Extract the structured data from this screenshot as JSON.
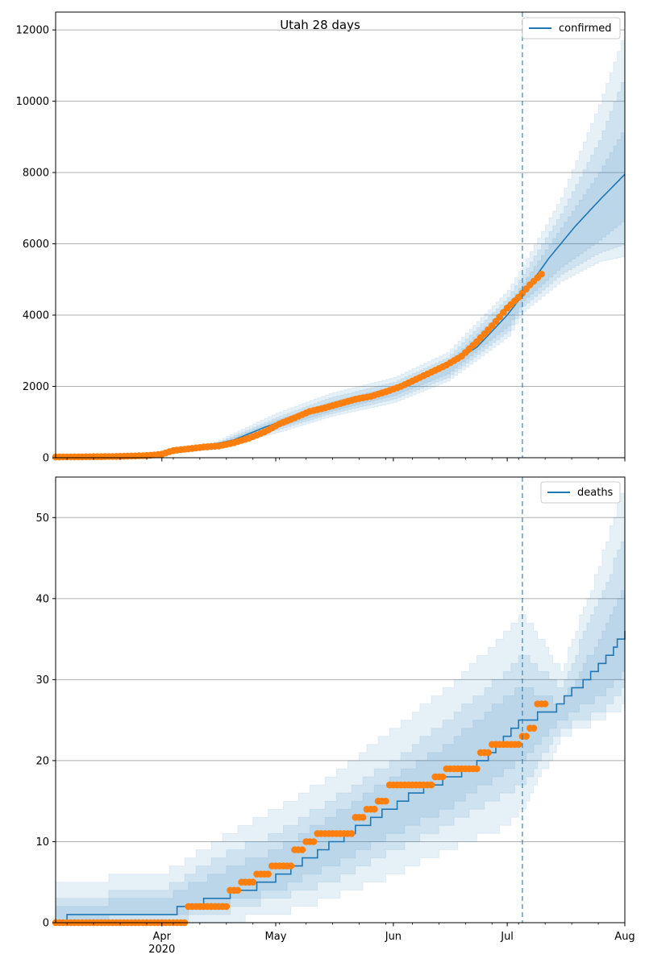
{
  "figure": {
    "title": "Utah 28 days"
  },
  "colors": {
    "model_line": "#1f77b4",
    "observed_points": "#ff7f0e",
    "band_fill": "#1f77b4",
    "forecast_marker": "#1f77b4",
    "grid": "#b0b0b0"
  },
  "x_axis": {
    "ticks": [
      {
        "date": "2020-04-01",
        "label": "Apr",
        "sublabel": "2020"
      },
      {
        "date": "2020-05-01",
        "label": "May",
        "sublabel": ""
      },
      {
        "date": "2020-06-01",
        "label": "Jun",
        "sublabel": ""
      },
      {
        "date": "2020-07-01",
        "label": "Jul",
        "sublabel": ""
      },
      {
        "date": "2020-08-01",
        "label": "Aug",
        "sublabel": ""
      }
    ],
    "range": [
      "2020-03-04",
      "2020-08-01"
    ]
  },
  "chart_data": [
    {
      "type": "line",
      "title": "Utah 28 days",
      "legend": {
        "label": "confirmed",
        "placement": "top-right"
      },
      "grid": "y",
      "ylim": [
        0,
        12500
      ],
      "yticks": [
        0,
        2000,
        4000,
        6000,
        8000,
        10000,
        12000
      ],
      "xlim": [
        "2020-03-04",
        "2020-08-01"
      ],
      "forecast_start": "2020-07-05",
      "model": {
        "dates": [
          "2020-03-04",
          "2020-03-12",
          "2020-03-20",
          "2020-03-28",
          "2020-04-04",
          "2020-04-12",
          "2020-04-20",
          "2020-04-28",
          "2020-05-06",
          "2020-05-14",
          "2020-05-22",
          "2020-05-30",
          "2020-06-07",
          "2020-06-15",
          "2020-06-23",
          "2020-07-01",
          "2020-07-05",
          "2020-07-12",
          "2020-07-19",
          "2020-07-26",
          "2020-08-01"
        ],
        "values": [
          0,
          10,
          30,
          60,
          200,
          320,
          500,
          850,
          1150,
          1400,
          1650,
          1900,
          2200,
          2550,
          3100,
          4000,
          4550,
          5600,
          6500,
          7300,
          7950
        ]
      },
      "bands": [
        {
          "dates": [
            "2020-03-04",
            "2020-04-01",
            "2020-04-15",
            "2020-05-01",
            "2020-05-15",
            "2020-06-01",
            "2020-06-15",
            "2020-07-01",
            "2020-07-05",
            "2020-07-15",
            "2020-07-25",
            "2020-08-01"
          ],
          "lower": [
            0,
            80,
            250,
            700,
            1150,
            1550,
            2150,
            3400,
            4100,
            4950,
            5500,
            5650
          ],
          "upper": [
            0,
            170,
            450,
            1250,
            1800,
            2250,
            2950,
            4700,
            5400,
            7300,
            9900,
            12000
          ]
        },
        {
          "dates": [
            "2020-03-04",
            "2020-04-01",
            "2020-04-15",
            "2020-05-01",
            "2020-05-15",
            "2020-06-01",
            "2020-06-15",
            "2020-07-01",
            "2020-07-05",
            "2020-07-15",
            "2020-07-25",
            "2020-08-01"
          ],
          "lower": [
            0,
            95,
            290,
            780,
            1230,
            1650,
            2250,
            3550,
            4250,
            5150,
            5750,
            6000
          ],
          "upper": [
            0,
            150,
            400,
            1130,
            1680,
            2120,
            2800,
            4500,
            5150,
            6850,
            8900,
            10800
          ]
        },
        {
          "dates": [
            "2020-03-04",
            "2020-04-01",
            "2020-04-15",
            "2020-05-01",
            "2020-05-15",
            "2020-06-01",
            "2020-06-15",
            "2020-07-01",
            "2020-07-05",
            "2020-07-15",
            "2020-07-25",
            "2020-08-01"
          ],
          "lower": [
            0,
            105,
            320,
            850,
            1300,
            1750,
            2350,
            3700,
            4400,
            5350,
            6100,
            6700
          ],
          "upper": [
            0,
            135,
            370,
            1050,
            1560,
            2000,
            2650,
            4300,
            4900,
            6450,
            8000,
            9300
          ]
        }
      ],
      "observed": {
        "dates": [
          "2020-03-04",
          "2020-03-10",
          "2020-03-16",
          "2020-03-22",
          "2020-03-28",
          "2020-04-01",
          "2020-04-04",
          "2020-04-08",
          "2020-04-12",
          "2020-04-16",
          "2020-04-20",
          "2020-04-24",
          "2020-04-28",
          "2020-05-02",
          "2020-05-06",
          "2020-05-10",
          "2020-05-14",
          "2020-05-18",
          "2020-05-22",
          "2020-05-26",
          "2020-05-30",
          "2020-06-03",
          "2020-06-07",
          "2020-06-11",
          "2020-06-15",
          "2020-06-19",
          "2020-06-23",
          "2020-06-27",
          "2020-07-01",
          "2020-07-04",
          "2020-07-07",
          "2020-07-10"
        ],
        "values": [
          20,
          25,
          30,
          40,
          60,
          100,
          200,
          250,
          300,
          330,
          420,
          550,
          720,
          950,
          1120,
          1300,
          1400,
          1520,
          1640,
          1720,
          1850,
          2000,
          2200,
          2400,
          2600,
          2850,
          3250,
          3700,
          4200,
          4500,
          4850,
          5150
        ]
      }
    },
    {
      "type": "line",
      "legend": {
        "label": "deaths",
        "placement": "top-right"
      },
      "grid": "y",
      "ylim": [
        0,
        55
      ],
      "yticks": [
        0,
        10,
        20,
        30,
        40,
        50
      ],
      "xlim": [
        "2020-03-04",
        "2020-08-01"
      ],
      "forecast_start": "2020-07-05",
      "model": {
        "dates": [
          "2020-03-04",
          "2020-03-10",
          "2020-04-01",
          "2020-04-08",
          "2020-04-15",
          "2020-04-22",
          "2020-04-29",
          "2020-05-06",
          "2020-05-13",
          "2020-05-20",
          "2020-05-27",
          "2020-06-03",
          "2020-06-10",
          "2020-06-17",
          "2020-06-24",
          "2020-07-01",
          "2020-07-05",
          "2020-07-12",
          "2020-07-19",
          "2020-07-26",
          "2020-08-01"
        ],
        "values": [
          0,
          1,
          1,
          2,
          3,
          4,
          5,
          7,
          9,
          11,
          13,
          15,
          17,
          18,
          20,
          23,
          25,
          26,
          29,
          32,
          36
        ]
      },
      "bands": [
        {
          "dates": [
            "2020-03-04",
            "2020-04-01",
            "2020-04-15",
            "2020-05-01",
            "2020-05-15",
            "2020-06-01",
            "2020-06-15",
            "2020-07-01",
            "2020-07-05",
            "2020-07-15",
            "2020-07-25",
            "2020-08-01"
          ],
          "lower": [
            0,
            0,
            0,
            1,
            3,
            6,
            9,
            12,
            14,
            23,
            25,
            27
          ],
          "upper": [
            5,
            6,
            10,
            14,
            18,
            24,
            29,
            36,
            38,
            31,
            44,
            55
          ]
        },
        {
          "dates": [
            "2020-03-04",
            "2020-04-01",
            "2020-04-15",
            "2020-05-01",
            "2020-05-15",
            "2020-06-01",
            "2020-06-15",
            "2020-07-01",
            "2020-07-05",
            "2020-07-15",
            "2020-07-25",
            "2020-08-01"
          ],
          "lower": [
            0,
            0,
            1,
            3,
            5,
            9,
            12,
            16,
            17,
            24,
            26,
            29
          ],
          "upper": [
            3,
            4,
            8,
            11,
            15,
            20,
            25,
            31,
            33,
            29,
            40,
            48
          ]
        },
        {
          "dates": [
            "2020-03-04",
            "2020-04-01",
            "2020-04-15",
            "2020-05-01",
            "2020-05-15",
            "2020-06-01",
            "2020-06-15",
            "2020-07-01",
            "2020-07-05",
            "2020-07-15",
            "2020-07-25",
            "2020-08-01"
          ],
          "lower": [
            0,
            1,
            2,
            4,
            7,
            11,
            14,
            19,
            20,
            25,
            28,
            31
          ],
          "upper": [
            2,
            3,
            6,
            9,
            13,
            18,
            22,
            28,
            29,
            27,
            35,
            42
          ]
        }
      ],
      "observed": {
        "dates": [
          "2020-03-04",
          "2020-03-15",
          "2020-03-25",
          "2020-04-05",
          "2020-04-08",
          "2020-04-12",
          "2020-04-16",
          "2020-04-19",
          "2020-04-22",
          "2020-04-26",
          "2020-04-30",
          "2020-05-03",
          "2020-05-06",
          "2020-05-09",
          "2020-05-12",
          "2020-05-16",
          "2020-05-19",
          "2020-05-22",
          "2020-05-25",
          "2020-05-28",
          "2020-05-31",
          "2020-06-03",
          "2020-06-06",
          "2020-06-09",
          "2020-06-12",
          "2020-06-15",
          "2020-06-18",
          "2020-06-21",
          "2020-06-24",
          "2020-06-27",
          "2020-06-30",
          "2020-07-02",
          "2020-07-05",
          "2020-07-07",
          "2020-07-09",
          "2020-07-11"
        ],
        "values": [
          0,
          0,
          0,
          0,
          2,
          2,
          2,
          4,
          5,
          6,
          7,
          7,
          9,
          10,
          11,
          11,
          11,
          13,
          14,
          15,
          17,
          17,
          17,
          17,
          18,
          19,
          19,
          19,
          21,
          22,
          22,
          22,
          23,
          24,
          27,
          27
        ]
      }
    }
  ]
}
